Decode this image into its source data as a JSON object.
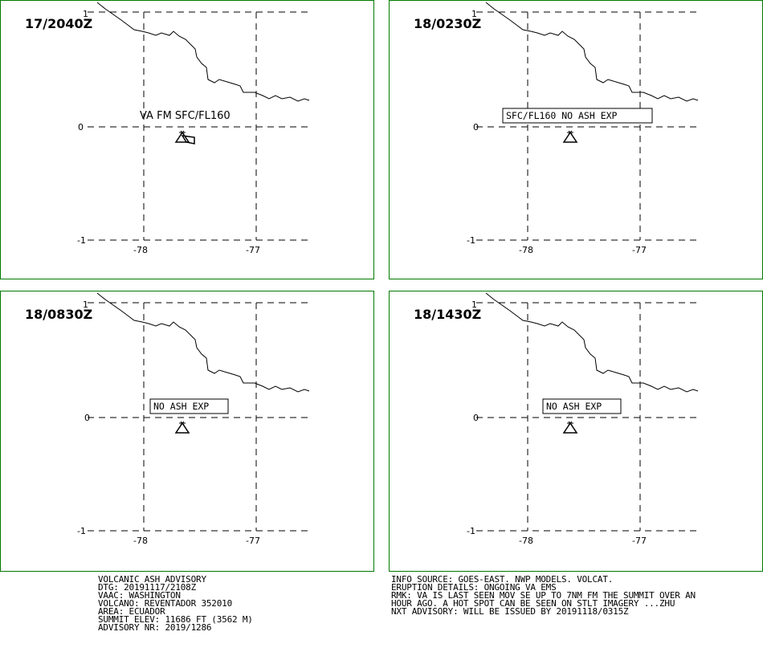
{
  "axis_labels": {
    "lat_top": "1",
    "lat_mid": "0",
    "lat_bottom": "-1",
    "lon_left": "-78",
    "lon_right": "-77"
  },
  "panels": [
    {
      "time": "17/2040Z",
      "label": "VA FM SFC/FL160",
      "label_boxed": false
    },
    {
      "time": "18/0230Z",
      "label": "SFC/FL160 NO ASH EXP",
      "label_boxed": true
    },
    {
      "time": "18/0830Z",
      "label": "NO ASH EXP",
      "label_boxed": true
    },
    {
      "time": "18/1430Z",
      "label": "NO ASH EXP",
      "label_boxed": true
    }
  ],
  "advisory": {
    "lines": [
      "VOLCANIC ASH ADVISORY",
      "DTG: 20191117/2108Z",
      "VAAC: WASHINGTON",
      "VOLCANO: REVENTADOR 352010",
      "AREA: ECUADOR",
      "SUMMIT ELEV: 11686 FT (3562 M)",
      "ADVISORY NR: 2019/1286"
    ]
  },
  "info": {
    "lines": [
      "INFO SOURCE: GOES-EAST. NWP MODELS. VOLCAT.",
      "ERUPTION DETAILS: ONGOING VA EMS",
      "RMK: VA IS LAST SEEN MOV SE UP TO 7NM FM THE SUMMIT OVER AN",
      "HOUR AGO. A HOT SPOT CAN BE SEEN ON STLT IMAGERY ...ZHU",
      "NXT ADVISORY: WILL BE ISSUED BY 20191118/0315Z"
    ]
  },
  "colors": {
    "panel_border": "#007a00",
    "lines": "#000000"
  }
}
